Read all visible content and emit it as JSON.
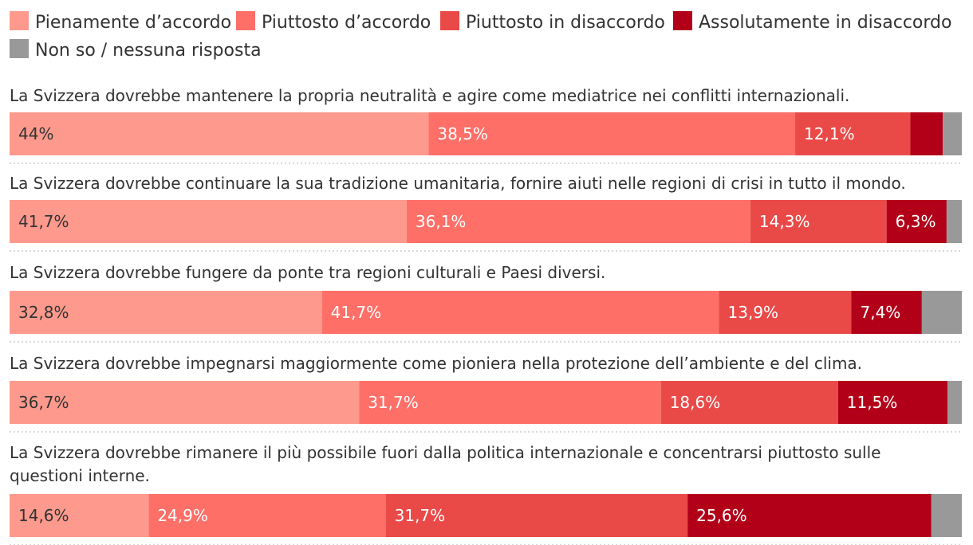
{
  "colors": {
    "pienamente": "#fd9a8d",
    "piuttosto_accordo": "#fe6f68",
    "piuttosto_disaccordo": "#e94a48",
    "assolutamente": "#b30019",
    "non_so": "#999999",
    "separator": "#cccccc"
  },
  "chart_data": {
    "type": "bar",
    "orientation": "horizontal",
    "stacked": true,
    "xlim": [
      0,
      100
    ],
    "legend_position": "top",
    "grid": false,
    "series": [
      {
        "name": "Pienamente d’accordo",
        "color_key": "pienamente",
        "values": [
          44,
          41.7,
          32.8,
          36.7,
          14.6
        ]
      },
      {
        "name": "Piuttosto d’accordo",
        "color_key": "piuttosto_accordo",
        "values": [
          38.5,
          36.1,
          41.7,
          31.7,
          24.9
        ]
      },
      {
        "name": "Piuttosto in disaccordo",
        "color_key": "piuttosto_disaccordo",
        "values": [
          12.1,
          14.3,
          13.9,
          18.6,
          31.7
        ]
      },
      {
        "name": "Assolutamente in disaccordo",
        "color_key": "assolutamente",
        "values": [
          3.4,
          6.3,
          7.4,
          11.5,
          25.6
        ]
      },
      {
        "name": "Non so / nessuna risposta",
        "color_key": "non_so",
        "values": [
          2,
          1.6,
          4.2,
          1.5,
          3.2
        ]
      }
    ],
    "categories": [
      [
        "La Svizzera dovrebbe mantenere la propria neutralità e agire come mediatrice nei conflitti internazionali."
      ],
      [
        "La Svizzera dovrebbe continuare la sua tradizione umanitaria, fornire aiuti nelle regioni di crisi in tutto il mondo."
      ],
      [
        "La Svizzera dovrebbe fungere da ponte tra regioni culturali e Paesi diversi."
      ],
      [
        "La Svizzera dovrebbe impegnarsi maggiormente come pioniera nella protezione dell’ambiente e del clima."
      ],
      [
        "La Svizzera dovrebbe rimanere il più possibile fuori dalla politica internazionale e concentrarsi piuttosto sulle",
        "questioni interne."
      ]
    ],
    "labels": [
      [
        "44%",
        "38,5%",
        "12,1%",
        "",
        ""
      ],
      [
        "41,7%",
        "36,1%",
        "14,3%",
        "6,3%",
        ""
      ],
      [
        "32,8%",
        "41,7%",
        "13,9%",
        "7,4%",
        ""
      ],
      [
        "36,7%",
        "31,7%",
        "18,6%",
        "11,5%",
        ""
      ],
      [
        "14,6%",
        "24,9%",
        "31,7%",
        "25,6%",
        ""
      ]
    ]
  }
}
